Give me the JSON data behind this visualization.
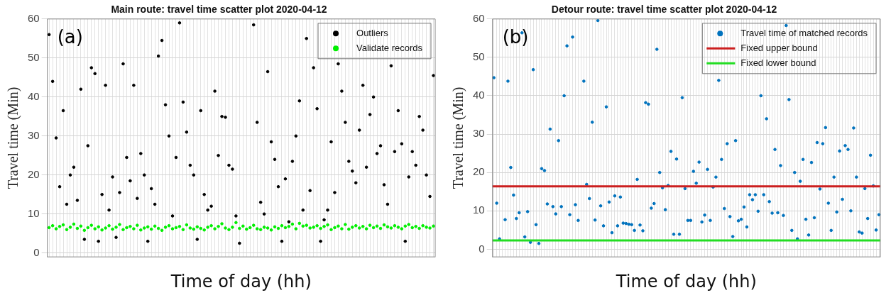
{
  "chart_data": [
    {
      "type": "scatter",
      "title": "Main route: travel time scatter plot 2020-04-12",
      "xlabel": "Time of day (hh)",
      "ylabel": "Travel time (Min)",
      "annotations": [
        "(a)"
      ],
      "categories": [
        null,
        null,
        null,
        null,
        null,
        null,
        null,
        null,
        null,
        null,
        null,
        null,
        null,
        null,
        null,
        null,
        null,
        null,
        null,
        null,
        null,
        null,
        null,
        null,
        null,
        null,
        null,
        null,
        null,
        null,
        null,
        null,
        null,
        null,
        null,
        null,
        null,
        null,
        null,
        null,
        null,
        null,
        null,
        null,
        null,
        null,
        null,
        null,
        null,
        null,
        null,
        null,
        null,
        null,
        null,
        null,
        null,
        null,
        null,
        null,
        null,
        null,
        null,
        null,
        null,
        null,
        null,
        null,
        null,
        null,
        null,
        null,
        null,
        null,
        null,
        null,
        null,
        null,
        null,
        null,
        null,
        null,
        null,
        null,
        null,
        null,
        null,
        null,
        null,
        null,
        null,
        null,
        null,
        null,
        null,
        null,
        null,
        null,
        null,
        null,
        null,
        null,
        null,
        null,
        null,
        null,
        null,
        null,
        null,
        null
      ],
      "series": [
        {
          "name": "Outliers",
          "color": "#000000",
          "values": [
            56,
            44,
            29.5,
            17,
            36.5,
            12.5,
            20,
            22,
            13.5,
            42,
            3.5,
            27.5,
            47.5,
            46,
            3,
            15,
            43,
            11,
            19.5,
            4,
            15.5,
            48.5,
            24.5,
            18.5,
            43,
            14,
            25.5,
            20,
            3,
            16.5,
            12.5,
            50.5,
            54.5,
            38,
            30,
            9.5,
            24.5,
            59,
            38.7,
            31,
            22.5,
            20,
            3.5,
            36.5,
            15,
            11,
            12,
            41.5,
            25,
            35,
            34.8,
            22.5,
            21.5,
            9.5,
            2.5,
            null,
            null,
            null,
            58.5,
            33.5,
            13,
            10,
            46.5,
            28.5,
            24,
            17,
            3,
            19,
            8,
            23.5,
            30,
            39,
            11,
            55,
            16,
            47.5,
            37,
            3,
            8.5,
            11,
            28.5,
            15.5,
            48.5,
            41.5,
            33.5,
            23.5,
            21,
            18,
            31.5,
            43,
            22,
            35.5,
            40,
            25.5,
            27.5,
            17.5,
            12.5,
            48,
            26,
            36.5,
            28,
            3,
            19.5,
            26,
            22.5,
            35,
            31.5,
            20,
            14.5,
            45.5
          ]
        },
        {
          "name": "Validate records",
          "color": "#00ee00",
          "values": [
            6.5,
            7,
            6.2,
            6.8,
            7.2,
            6,
            6.6,
            7.4,
            6.3,
            6.9,
            5.8,
            6.5,
            7.1,
            6.2,
            6.7,
            5.9,
            6.4,
            7,
            6.1,
            6.6,
            7.3,
            6,
            6.5,
            6.8,
            6.2,
            7.1,
            5.9,
            6.4,
            6.7,
            6.1,
            6.9,
            6.3,
            5.8,
            6.6,
            7,
            6.2,
            6.5,
            6.8,
            6,
            7.2,
            6.4,
            6.1,
            6.7,
            6.3,
            5.9,
            6.6,
            7,
            6.2,
            6.8,
            7.5,
            6.4,
            6,
            6.6,
            7.8,
            6.3,
            6.9,
            6.1,
            6.5,
            7.1,
            6.2,
            6,
            6.6,
            6.4,
            5.9,
            6.7,
            6.3,
            7,
            6.5,
            6.8,
            7.4,
            6.2,
            7.6,
            6.9,
            7.1,
            6.4,
            6.6,
            7,
            6.3,
            6.8,
            7.2,
            6,
            6.5,
            6.9,
            6.2,
            7.3,
            6.1,
            6.6,
            7,
            6.4,
            6.8,
            6.2,
            7.1,
            6.5,
            6.9,
            6.3,
            7.2,
            6.7,
            6.4,
            7,
            6.6,
            6.2,
            6.9,
            7.3,
            6.5,
            6.8,
            6.3,
            7,
            6.6,
            6.4,
            6.9
          ]
        }
      ],
      "ylim": [
        -1,
        60
      ],
      "yticks": [
        0,
        10,
        20,
        30,
        40,
        50,
        60
      ],
      "grid": true,
      "tick_labels": "y",
      "legend": "top right",
      "marker": "circle"
    },
    {
      "type": "scatter",
      "title": "Detour route: travel time scatter plot 2020-04-12",
      "xlabel": "Time of day (hh)",
      "ylabel": "Travel time (Min)",
      "annotations": [
        "(b)"
      ],
      "categories": [
        null,
        null,
        null,
        null,
        null,
        null,
        null,
        null,
        null,
        null,
        null,
        null,
        null,
        null,
        null,
        null,
        null,
        null,
        null,
        null,
        null,
        null,
        null,
        null,
        null,
        null,
        null,
        null,
        null,
        null,
        null,
        null,
        null,
        null,
        null,
        null,
        null,
        null,
        null,
        null,
        null,
        null,
        null,
        null,
        null,
        null,
        null,
        null,
        null,
        null,
        null,
        null,
        null,
        null,
        null,
        null,
        null,
        null,
        null,
        null,
        null,
        null,
        null,
        null,
        null,
        null,
        null,
        null,
        null,
        null,
        null,
        null,
        null,
        null,
        null,
        null,
        null,
        null,
        null,
        null,
        null,
        null,
        null,
        null,
        null,
        null,
        null,
        null,
        null,
        null,
        null,
        null,
        null,
        null,
        null,
        null,
        null,
        null,
        null,
        null,
        null,
        null,
        null,
        null,
        null,
        null,
        null,
        null,
        null,
        null,
        null,
        null,
        null,
        null,
        null,
        null,
        null,
        null,
        null,
        null,
        null,
        null,
        null,
        null,
        null,
        null,
        null,
        null,
        null,
        null,
        null,
        null,
        null,
        null,
        null,
        null,
        null,
        null
      ],
      "series": [
        {
          "name": "Travel time of matched records",
          "color": "#0072bd",
          "values": [
            44.7,
            12,
            2.7,
            null,
            7.7,
            43.8,
            21.3,
            14.1,
            8,
            9.5,
            56.4,
            3.2,
            9.8,
            1.8,
            46.8,
            6.4,
            1.5,
            21,
            20.5,
            11.8,
            31.3,
            11.1,
            9.2,
            28.3,
            11.1,
            40,
            53,
            9,
            55.3,
            11.6,
            7.5,
            null,
            43.8,
            16.9,
            13.2,
            33.1,
            7.6,
            59.6,
            11.3,
            6.1,
            37.1,
            12.3,
            4.3,
            13.9,
            6.1,
            13.6,
            6.8,
            6.7,
            6.5,
            6.4,
            4.9,
            18.2,
            6.3,
            4.8,
            38.2,
            37.8,
            10.7,
            11.9,
            52.1,
            20,
            16,
            10.3,
            16.6,
            25.5,
            3.9,
            23.5,
            3.9,
            39.5,
            15.8,
            7.5,
            7.5,
            20.3,
            17.2,
            22.7,
            7.1,
            8.9,
            20.8,
            7.5,
            16.2,
            18.8,
            44,
            23.4,
            10.6,
            27.5,
            8.5,
            3.3,
            28.3,
            7.4,
            7.8,
            11,
            5.8,
            14.2,
            12.9,
            14.2,
            9.9,
            40,
            14.2,
            34,
            12.4,
            9.4,
            26,
            9.5,
            21.8,
            8.8,
            58.3,
            39,
            4.9,
            20,
            2.7,
            17.7,
            23.4,
            7.8,
            3.7,
            22.6,
            8.2,
            27.8,
            15.7,
            27.5,
            31.7,
            12,
            4.9,
            18.8,
            9.7,
            25.6,
            13,
            27,
            26,
            10,
            31.6,
            18.8,
            4.5,
            4.2,
            15.8,
            8,
            24.5,
            16.5,
            5,
            9
          ]
        }
      ],
      "ref_lines": [
        {
          "axis": "y",
          "value": 16.4,
          "label": "Fixed upper bound",
          "color": "#cc1f1f"
        },
        {
          "axis": "y",
          "value": 2.3,
          "label": "Fixed lower bound",
          "color": "#22dd22"
        }
      ],
      "ylim": [
        -2,
        60
      ],
      "yticks": [
        0,
        10,
        20,
        30,
        40,
        50,
        60
      ],
      "grid": true,
      "tick_labels": "y",
      "legend": "top right",
      "marker": "circle"
    }
  ]
}
